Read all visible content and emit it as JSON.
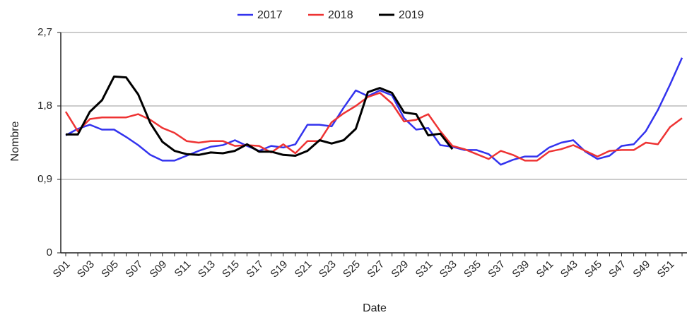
{
  "chart_data": {
    "type": "line",
    "x_label": "Date",
    "y_label": "Nombre",
    "categories": [
      "S01",
      null,
      "S03",
      null,
      "S05",
      null,
      "S07",
      null,
      "S09",
      null,
      "S11",
      null,
      "S13",
      null,
      "S15",
      null,
      "S17",
      null,
      "S19",
      null,
      "S21",
      null,
      "S23",
      null,
      "S25",
      null,
      "S27",
      null,
      "S29",
      null,
      "S31",
      null,
      "S33",
      null,
      "S35",
      null,
      "S37",
      null,
      "S39",
      null,
      "S41",
      null,
      "S43",
      null,
      "S45",
      null,
      "S47",
      null,
      "S49",
      null,
      "S51",
      null
    ],
    "ylim": [
      0,
      2.7
    ],
    "yticks": [
      0,
      {
        "value": 0.9,
        "label": "0,9"
      },
      {
        "value": 1.8,
        "label": "1,8"
      },
      {
        "value": 2.7,
        "label": "2,7"
      }
    ],
    "grid": true,
    "legend": "top",
    "series": [
      {
        "name": "2017",
        "color": "#3333ee",
        "values": [
          1.44,
          1.52,
          1.57,
          1.51,
          1.51,
          1.42,
          1.32,
          1.2,
          1.13,
          1.13,
          1.19,
          1.25,
          1.3,
          1.32,
          1.38,
          1.31,
          1.25,
          1.31,
          1.29,
          1.33,
          1.57,
          1.57,
          1.55,
          1.78,
          1.99,
          1.92,
          1.99,
          1.93,
          1.65,
          1.51,
          1.53,
          1.32,
          1.3,
          1.26,
          1.26,
          1.21,
          1.08,
          1.14,
          1.18,
          1.18,
          1.29,
          1.35,
          1.38,
          1.24,
          1.15,
          1.19,
          1.31,
          1.33,
          1.49,
          1.75,
          2.06,
          2.39
        ]
      },
      {
        "name": "2018",
        "color": "#ee3333",
        "values": [
          1.73,
          1.49,
          1.64,
          1.66,
          1.66,
          1.66,
          1.7,
          1.63,
          1.53,
          1.47,
          1.37,
          1.35,
          1.37,
          1.37,
          1.31,
          1.32,
          1.31,
          1.23,
          1.33,
          1.22,
          1.37,
          1.37,
          1.6,
          1.71,
          1.8,
          1.91,
          1.96,
          1.83,
          1.61,
          1.63,
          1.7,
          1.49,
          1.31,
          1.27,
          1.21,
          1.15,
          1.25,
          1.2,
          1.13,
          1.13,
          1.24,
          1.27,
          1.32,
          1.25,
          1.18,
          1.25,
          1.26,
          1.26,
          1.35,
          1.33,
          1.54,
          1.65
        ]
      },
      {
        "name": "2019",
        "color": "#000000",
        "width": 3,
        "values": [
          1.45,
          1.45,
          1.73,
          1.87,
          2.16,
          2.15,
          1.94,
          1.59,
          1.36,
          1.25,
          1.21,
          1.2,
          1.23,
          1.22,
          1.25,
          1.33,
          1.24,
          1.24,
          1.2,
          1.19,
          1.25,
          1.38,
          1.34,
          1.38,
          1.52,
          1.97,
          2.02,
          1.96,
          1.72,
          1.7,
          1.44,
          1.46,
          1.27,
          null,
          null,
          null,
          null,
          null,
          null,
          null,
          null,
          null,
          null,
          null,
          null,
          null,
          null,
          null,
          null,
          null,
          null,
          null
        ]
      }
    ]
  }
}
